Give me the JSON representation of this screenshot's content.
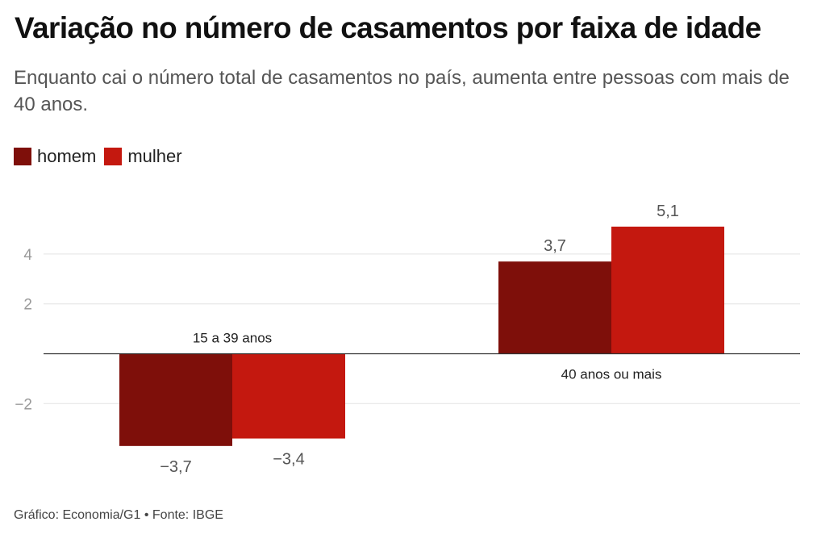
{
  "title": "Variação no número de casamentos por faixa de idade",
  "subtitle": "Enquanto cai o número total de casamentos no país, aumenta entre pessoas com mais de 40 anos.",
  "legend": [
    {
      "label": "homem",
      "color": "#7e0f0a"
    },
    {
      "label": "mulher",
      "color": "#c4180f"
    }
  ],
  "footer": "Gráfico: Economia/G1 • Fonte: IBGE",
  "chart_data": {
    "type": "bar",
    "title": "Variação no número de casamentos por faixa de idade",
    "categories": [
      "15 a 39 anos",
      "40 anos ou mais"
    ],
    "series": [
      {
        "name": "homem",
        "values": [
          -3.7,
          3.7
        ],
        "labels": [
          "−3,7",
          "3,7"
        ],
        "color": "#7e0f0a"
      },
      {
        "name": "mulher",
        "values": [
          -3.4,
          5.1
        ],
        "labels": [
          "−3,4",
          "5,1"
        ],
        "color": "#c4180f"
      }
    ],
    "yticks": [
      -2,
      2,
      4
    ],
    "ytick_labels": [
      "−2",
      "2",
      "4"
    ],
    "ylim": [
      -4,
      5.1
    ],
    "grid": true,
    "legend_position": "top-left",
    "xlabel": "",
    "ylabel": ""
  }
}
